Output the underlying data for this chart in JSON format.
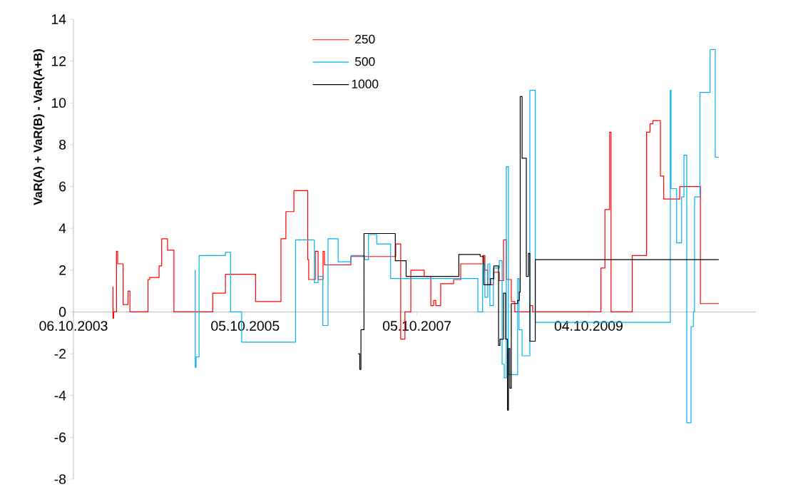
{
  "chart_data": {
    "type": "step",
    "ylabel": "VaR(A) + VaR(B) - VaR(A+B)",
    "xlim": [
      "2003-10-06",
      "2011-09-15"
    ],
    "xticks": [
      {
        "value": "2003-10-06",
        "label": "06.10.2003"
      },
      {
        "value": "2005-10-05",
        "label": "05.10.2005"
      },
      {
        "value": "2007-10-05",
        "label": "05.10.2007"
      },
      {
        "value": "2009-10-04",
        "label": "04.10.2009"
      }
    ],
    "ylim": [
      -8,
      14
    ],
    "yticks": [
      -8,
      -6,
      -4,
      -2,
      0,
      2,
      4,
      6,
      8,
      10,
      12,
      14
    ],
    "legend": "top",
    "marker": "none",
    "series": [
      {
        "name": "250",
        "color": "#ff0000",
        "x": [
          "2004-03-20",
          "2004-03-22",
          "2004-03-25",
          "2004-04-06",
          "2004-04-11",
          "2004-05-04",
          "2004-05-25",
          "2004-06-02",
          "2004-08-18",
          "2004-08-25",
          "2004-10-04",
          "2004-10-15",
          "2004-11-09",
          "2004-12-06",
          "2005-05-20",
          "2005-07-13",
          "2005-11-18",
          "2006-03-06",
          "2006-03-27",
          "2006-04-30",
          "2006-06-28",
          "2006-07-02",
          "2006-07-30",
          "2006-08-11",
          "2006-09-01",
          "2006-09-07",
          "2006-12-28",
          "2007-07-07",
          "2007-07-28",
          "2007-08-15",
          "2007-09-09",
          "2007-11-05",
          "2007-12-03",
          "2007-12-15",
          "2007-12-24",
          "2008-01-14",
          "2008-03-09",
          "2008-04-08",
          "2008-07-11",
          "2008-07-20",
          "2008-08-01",
          "2008-08-25",
          "2008-09-19",
          "2008-10-07",
          "2008-10-19",
          "2008-11-09",
          "2008-11-24",
          "2009-01-27",
          "2009-02-08",
          "2009-11-25",
          "2009-12-12",
          "2010-01-01",
          "2010-01-07",
          "2010-04-07",
          "2010-06-07",
          "2010-06-22",
          "2010-07-04",
          "2010-08-05",
          "2010-08-19",
          "2010-10-26",
          "2011-01-22",
          "2011-04-10"
        ],
        "values": [
          1.2,
          -0.3,
          0,
          2.9,
          2.3,
          0.35,
          1.0,
          0,
          1.55,
          1.65,
          2.2,
          3.5,
          2.95,
          0,
          0.9,
          1.8,
          0.5,
          3.5,
          4.8,
          5.8,
          2.5,
          1.55,
          2.9,
          1.55,
          2.9,
          2.25,
          2.65,
          3.25,
          -1.3,
          0,
          2.0,
          1.7,
          0.3,
          0.55,
          0.3,
          1.35,
          1.55,
          2.3,
          2.7,
          2.0,
          1.3,
          1.9,
          1.5,
          3.45,
          1.55,
          0.5,
          0,
          0.3,
          0,
          2.1,
          4.9,
          8.6,
          0,
          2.7,
          8.6,
          9.0,
          9.15,
          6.5,
          5.4,
          6.0,
          0.4,
          0.4
        ]
      },
      {
        "name": "500",
        "color": "#00b0f0",
        "x": [
          "2005-03-05",
          "2005-03-07",
          "2005-03-10",
          "2005-03-23",
          "2005-07-13",
          "2005-08-04",
          "2005-09-20",
          "2006-05-07",
          "2006-07-26",
          "2006-08-11",
          "2006-08-31",
          "2006-09-22",
          "2006-11-04",
          "2006-12-29",
          "2007-02-24",
          "2007-03-13",
          "2007-04-17",
          "2007-06-15",
          "2008-06-20",
          "2008-07-10",
          "2008-07-20",
          "2008-08-01",
          "2008-08-10",
          "2008-08-25",
          "2008-09-19",
          "2008-10-01",
          "2008-10-10",
          "2008-10-19",
          "2008-10-28",
          "2008-12-06",
          "2008-12-12",
          "2008-12-25",
          "2009-01-27",
          "2009-02-19",
          "2010-09-16",
          "2010-09-19",
          "2010-10-13",
          "2010-11-03",
          "2010-11-13",
          "2010-11-25",
          "2010-12-13",
          "2010-12-23",
          "2010-12-28",
          "2011-01-20",
          "2011-03-04",
          "2011-03-26",
          "2011-04-10"
        ],
        "values": [
          2.0,
          -2.65,
          -2.15,
          2.7,
          2.85,
          0,
          -1.45,
          3.45,
          1.4,
          1.7,
          -0.65,
          3.5,
          2.4,
          2.7,
          2.5,
          3.7,
          3.25,
          1.6,
          0,
          2.3,
          0.7,
          2.3,
          0.3,
          2.1,
          2.45,
          -2.5,
          -3.15,
          6.95,
          -3.0,
          1.6,
          -0.85,
          -2.1,
          10.6,
          -0.5,
          10.6,
          5.9,
          3.3,
          5.5,
          7.5,
          -5.3,
          -0.7,
          0,
          5.5,
          10.5,
          12.55,
          7.4,
          7.4
        ]
      },
      {
        "name": "1000",
        "color": "#000000",
        "x": [
          "2007-01-28",
          "2007-02-04",
          "2007-02-09",
          "2007-02-22",
          "2007-07-05",
          "2007-08-20",
          "2008-03-31",
          "2008-06-30",
          "2008-07-15",
          "2008-08-13",
          "2008-08-27",
          "2008-09-16",
          "2008-09-22",
          "2008-10-07",
          "2008-10-16",
          "2008-10-24",
          "2008-10-28",
          "2008-11-03",
          "2008-11-09",
          "2008-12-06",
          "2008-12-13",
          "2008-12-17",
          "2008-12-25",
          "2009-01-12",
          "2009-01-21",
          "2009-01-27",
          "2009-02-19",
          "2011-04-10"
        ],
        "values": [
          -2.0,
          -2.75,
          -0.85,
          3.75,
          2.45,
          1.7,
          2.75,
          2.65,
          1.3,
          1.6,
          2.2,
          -1.6,
          -1.3,
          0.9,
          -1.3,
          -4.7,
          -1.75,
          -3.65,
          0.4,
          0.55,
          0.95,
          10.3,
          7.35,
          1.7,
          2.8,
          -1.4,
          2.5,
          2.5
        ]
      }
    ]
  }
}
